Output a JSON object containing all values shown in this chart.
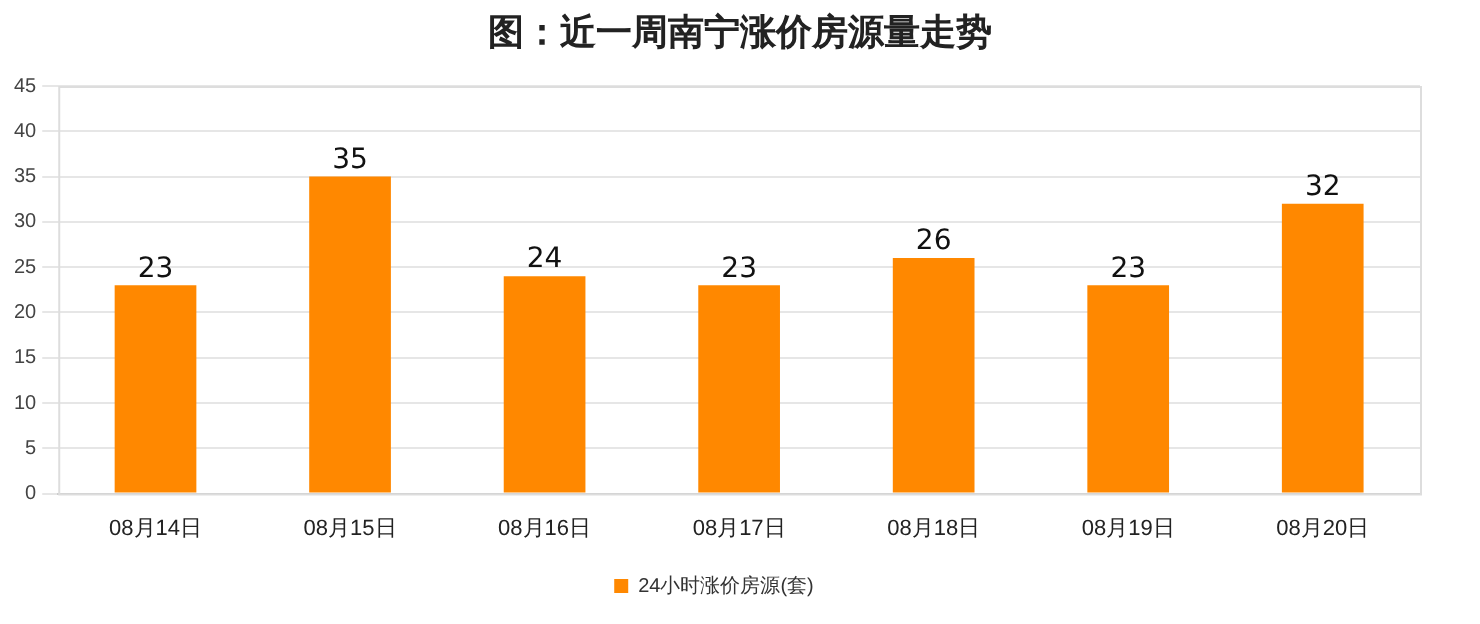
{
  "chart_data": {
    "type": "bar",
    "title": "图：近一周南宁涨价房源量走势",
    "categories": [
      "08月14日",
      "08月15日",
      "08月16日",
      "08月17日",
      "08月18日",
      "08月19日",
      "08月20日"
    ],
    "series": [
      {
        "name": "24小时涨价房源(套)",
        "color": "#ff8800",
        "values": [
          23,
          35,
          24,
          23,
          26,
          23,
          32
        ]
      }
    ],
    "ylim": [
      0,
      45
    ],
    "yticks": [
      0,
      5,
      10,
      15,
      20,
      25,
      30,
      35,
      40,
      45
    ],
    "grid": "y",
    "legend": "bottom",
    "data_labels": true
  }
}
